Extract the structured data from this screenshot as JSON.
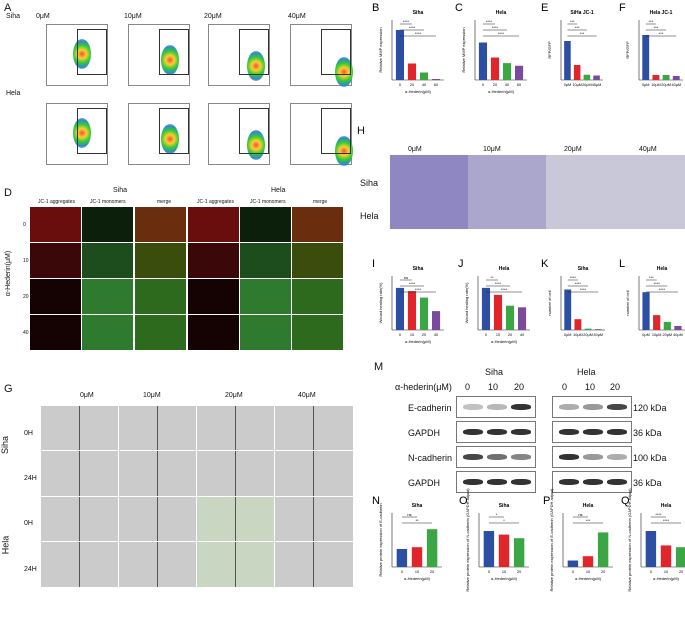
{
  "panels": {
    "A": {
      "letter": "A",
      "rows": [
        "Siha",
        "Hela"
      ],
      "columns": [
        "0μM",
        "10μM",
        "20μM",
        "40μM"
      ],
      "x_axis": "Comp-BL1-A :: FITC-A",
      "y_axis": "Comp-BL2-A :: BL2-A"
    },
    "D": {
      "letter": "D",
      "groups": [
        "Siha",
        "Hela"
      ],
      "columns": [
        "JC-1 aggregates",
        "JC-1 monomers",
        "merge",
        "JC-1 aggregates",
        "JC-1 monomers",
        "merge"
      ],
      "rows": [
        "0",
        "10",
        "20",
        "40"
      ],
      "y_axis": "α-Hederin(μM)"
    },
    "G": {
      "letter": "G",
      "columns": [
        "0μM",
        "10μM",
        "20μM",
        "40μM"
      ],
      "groups": [
        "Siha",
        "Hela"
      ],
      "times": [
        "0H",
        "24H",
        "0H",
        "24H"
      ]
    },
    "H": {
      "letter": "H",
      "columns": [
        "0μM",
        "10μM",
        "20μM",
        "40μM"
      ],
      "rows": [
        "Siha",
        "Hela"
      ]
    },
    "M": {
      "letter": "M",
      "treatment_label": "α-hederin(μM)",
      "groups": [
        "Siha",
        "Hela"
      ],
      "doses": [
        "0",
        "10",
        "20",
        "0",
        "10",
        "20"
      ],
      "rows": [
        {
          "name": "E-cadherin",
          "kda": "120 kDa"
        },
        {
          "name": "GAPDH",
          "kda": "36 kDa"
        },
        {
          "name": "N-cadherin",
          "kda": "100 kDa"
        },
        {
          "name": "GAPDH",
          "kda": "36 kDa"
        }
      ]
    }
  },
  "chart_data": [
    {
      "letter": "B",
      "type": "bar",
      "title": "Siha",
      "ylabel": "Relative MMP expression",
      "xlabel": "α-Hederin(μM)",
      "categories": [
        "0",
        "20",
        "40",
        "60"
      ],
      "values": [
        1.0,
        0.33,
        0.15,
        0.02
      ],
      "ylim": [
        0,
        1.2
      ],
      "colors": [
        "#2c4fa3",
        "#e0262a",
        "#3aa644",
        "#7a4a9c"
      ],
      "sig": [
        "****",
        "****",
        "****"
      ]
    },
    {
      "letter": "C",
      "type": "bar",
      "title": "Hela",
      "ylabel": "Relative MMP expression",
      "xlabel": "α-Hederin(μM)",
      "categories": [
        "0",
        "20",
        "40",
        "60"
      ],
      "values": [
        1.0,
        0.6,
        0.45,
        0.38
      ],
      "ylim": [
        0,
        1.6
      ],
      "colors": [
        "#2c4fa3",
        "#e0262a",
        "#3aa644",
        "#7a4a9c"
      ],
      "sig": [
        "****",
        "****",
        "****"
      ]
    },
    {
      "letter": "E",
      "type": "bar",
      "title": "SiHa JC-1",
      "ylabel": "RFP/GFP",
      "xlabel": "",
      "categories": [
        "0μM",
        "10μM",
        "20μM",
        "40μM"
      ],
      "values": [
        2.6,
        1.0,
        0.35,
        0.3
      ],
      "ylim": [
        0,
        4
      ],
      "colors": [
        "#2c4fa3",
        "#e0262a",
        "#3aa644",
        "#7a4a9c"
      ],
      "sig": [
        "***",
        "***",
        "***"
      ]
    },
    {
      "letter": "F",
      "type": "bar",
      "title": "Hela JC-1",
      "ylabel": "RFP/GFP",
      "xlabel": "",
      "categories": [
        "0μM",
        "10μM",
        "20μM",
        "40μM"
      ],
      "values": [
        4.5,
        0.5,
        0.5,
        0.4
      ],
      "ylim": [
        0,
        6
      ],
      "colors": [
        "#2c4fa3",
        "#e0262a",
        "#3aa644",
        "#7a4a9c"
      ],
      "sig": [
        "***",
        "***",
        "***"
      ]
    },
    {
      "letter": "I",
      "type": "bar",
      "title": "Siha",
      "ylabel": "Wound healing rate(%)",
      "xlabel": "α-Hederin(μM)",
      "categories": [
        "0",
        "10",
        "20",
        "40"
      ],
      "values": [
        78,
        72,
        60,
        35
      ],
      "ylim": [
        0,
        100
      ],
      "colors": [
        "#2c4fa3",
        "#e0262a",
        "#3aa644",
        "#7a4a9c"
      ],
      "sig": [
        "ns",
        "****",
        "****"
      ]
    },
    {
      "letter": "J",
      "type": "bar",
      "title": "Hela",
      "ylabel": "Wound healing rate(%)",
      "xlabel": "α-Hederin(μM)",
      "categories": [
        "0",
        "10",
        "20",
        "40"
      ],
      "values": [
        78,
        65,
        45,
        42
      ],
      "ylim": [
        0,
        100
      ],
      "colors": [
        "#2c4fa3",
        "#e0262a",
        "#3aa644",
        "#7a4a9c"
      ],
      "sig": [
        "**",
        "****",
        "****"
      ]
    },
    {
      "letter": "K",
      "type": "bar",
      "title": "Siha",
      "ylabel": "number of cell",
      "xlabel": "",
      "categories": [
        "0μM",
        "10μM",
        "20μM",
        "40μM"
      ],
      "values": [
        150,
        40,
        5,
        3
      ],
      "ylim": [
        0,
        200
      ],
      "colors": [
        "#2c4fa3",
        "#e0262a",
        "#3aa644",
        "#7a4a9c"
      ],
      "sig": [
        "****",
        "****",
        "****"
      ]
    },
    {
      "letter": "L",
      "type": "bar",
      "title": "Hela",
      "ylabel": "number of cell",
      "xlabel": "",
      "categories": [
        "0μM",
        "10μM",
        "20μM",
        "40μM"
      ],
      "values": [
        140,
        55,
        30,
        15
      ],
      "ylim": [
        0,
        200
      ],
      "colors": [
        "#2c4fa3",
        "#e0262a",
        "#3aa644",
        "#7a4a9c"
      ],
      "sig": [
        "***",
        "****",
        "****"
      ]
    },
    {
      "letter": "N",
      "type": "bar",
      "title": "Siha",
      "ylabel": "Relative protein expression of E-cadherin",
      "xlabel": "α-Hederin(μM)",
      "categories": [
        "0",
        "10",
        "20"
      ],
      "values": [
        1.0,
        1.1,
        2.1
      ],
      "ylim": [
        0,
        3
      ],
      "colors": [
        "#2c4fa3",
        "#e0262a",
        "#3aa644"
      ],
      "sig": [
        "ns",
        "**"
      ]
    },
    {
      "letter": "O",
      "type": "bar",
      "title": "Siha",
      "ylabel": "Relative protein expression of N-cadherin (GAPDH adjust)",
      "xlabel": "α-Hederin(μM)",
      "categories": [
        "0",
        "10",
        "20"
      ],
      "values": [
        1.0,
        0.9,
        0.8
      ],
      "ylim": [
        0,
        1.5
      ],
      "colors": [
        "#2c4fa3",
        "#e0262a",
        "#3aa644"
      ],
      "sig": [
        "*",
        "*"
      ]
    },
    {
      "letter": "P",
      "type": "bar",
      "title": "Hela",
      "ylabel": "Relative protein expression of E-cadherin (GAPDH adjust)",
      "xlabel": "α-Hederin(μM)",
      "categories": [
        "0",
        "10",
        "20"
      ],
      "values": [
        0.3,
        0.5,
        1.6
      ],
      "ylim": [
        0,
        2.5
      ],
      "colors": [
        "#2c4fa3",
        "#e0262a",
        "#3aa644"
      ],
      "sig": [
        "ns",
        "***"
      ]
    },
    {
      "letter": "Q",
      "type": "bar",
      "title": "Hela",
      "ylabel": "Relative protein expression of N-cadherin (GAPDH adjust)",
      "xlabel": "α-Hederin(μM)",
      "categories": [
        "0",
        "10",
        "20"
      ],
      "values": [
        1.0,
        0.6,
        0.55
      ],
      "ylim": [
        0,
        1.5
      ],
      "colors": [
        "#2c4fa3",
        "#e0262a",
        "#3aa644"
      ],
      "sig": [
        "****",
        "****"
      ]
    }
  ]
}
